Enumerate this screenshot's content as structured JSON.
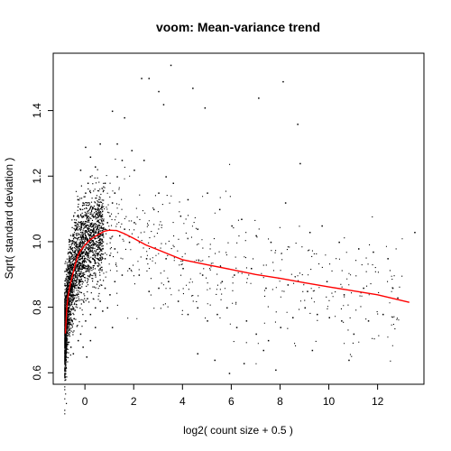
{
  "chart_data": {
    "type": "scatter",
    "title": "voom: Mean-variance trend",
    "xlabel": "log2( count size + 0.5 )",
    "ylabel": "Sqrt( standard deviation )",
    "xlim": [
      -1.3,
      13.9
    ],
    "ylim": [
      0.565,
      1.575
    ],
    "xticks": [
      0,
      2,
      4,
      6,
      8,
      10,
      12
    ],
    "yticks": [
      0.6,
      0.8,
      1.0,
      1.2,
      1.4
    ],
    "xtick_labels": [
      "0",
      "2",
      "4",
      "6",
      "8",
      "10",
      "12"
    ],
    "ytick_labels": [
      "0.6",
      "0.8",
      "1.0",
      "1.2",
      "1.4"
    ],
    "grid": false,
    "point_color": "#000000",
    "trend_color": "#ff0000",
    "trend": {
      "x": [
        -0.8,
        -0.75,
        -0.7,
        -0.6,
        -0.5,
        -0.4,
        -0.3,
        -0.2,
        0.0,
        0.2,
        0.5,
        0.8,
        1.0,
        1.3,
        1.6,
        2.0,
        2.5,
        3.0,
        3.5,
        4.0,
        5.0,
        6.0,
        7.0,
        8.0,
        9.0,
        10.0,
        11.0,
        12.0,
        13.3
      ],
      "y": [
        0.72,
        0.79,
        0.83,
        0.87,
        0.9,
        0.93,
        0.955,
        0.97,
        0.99,
        1.005,
        1.02,
        1.032,
        1.035,
        1.034,
        1.025,
        1.01,
        0.99,
        0.975,
        0.96,
        0.945,
        0.93,
        0.915,
        0.9,
        0.888,
        0.875,
        0.862,
        0.85,
        0.838,
        0.815
      ]
    },
    "points": [
      [
        -0.85,
        0.66
      ],
      [
        -0.8,
        0.7
      ],
      [
        -0.75,
        0.74
      ],
      [
        -0.7,
        0.78
      ],
      [
        -0.65,
        0.82
      ],
      [
        -0.6,
        0.85
      ],
      [
        -0.55,
        0.88
      ],
      [
        -0.5,
        0.9
      ],
      [
        -0.45,
        0.92
      ],
      [
        -0.4,
        0.94
      ],
      [
        -0.35,
        0.96
      ],
      [
        -0.3,
        0.97
      ],
      [
        -0.25,
        0.99
      ],
      [
        -0.2,
        1.0
      ],
      [
        -0.1,
        1.01
      ],
      [
        0.0,
        1.02
      ],
      [
        0.1,
        1.04
      ],
      [
        0.2,
        1.05
      ],
      [
        -0.6,
        0.75
      ],
      [
        -0.5,
        0.8
      ],
      [
        -0.4,
        0.82
      ],
      [
        -0.3,
        0.86
      ],
      [
        -0.2,
        0.88
      ],
      [
        -0.1,
        0.9
      ],
      [
        0.0,
        0.92
      ],
      [
        0.1,
        0.93
      ],
      [
        0.2,
        0.94
      ],
      [
        0.3,
        0.96
      ],
      [
        -0.7,
        0.92
      ],
      [
        -0.6,
        0.98
      ],
      [
        -0.5,
        1.02
      ],
      [
        -0.4,
        1.06
      ],
      [
        -0.3,
        1.08
      ],
      [
        -0.2,
        1.1
      ],
      [
        -0.1,
        1.12
      ],
      [
        0.0,
        1.15
      ],
      [
        0.1,
        1.18
      ],
      [
        0.2,
        1.2
      ],
      [
        0.3,
        1.08
      ],
      [
        0.4,
        1.1
      ],
      [
        0.5,
        1.05
      ],
      [
        0.6,
        1.0
      ],
      [
        0.7,
        0.98
      ],
      [
        0.8,
        1.04
      ],
      [
        0.9,
        1.06
      ],
      [
        1.0,
        1.08
      ],
      [
        1.1,
        1.12
      ],
      [
        1.2,
        1.15
      ],
      [
        1.3,
        1.2
      ],
      [
        1.5,
        1.25
      ],
      [
        0.4,
        0.9
      ],
      [
        0.5,
        0.88
      ],
      [
        0.6,
        0.92
      ],
      [
        0.8,
        0.95
      ],
      [
        1.0,
        0.96
      ],
      [
        1.2,
        0.98
      ],
      [
        1.4,
        1.02
      ],
      [
        1.6,
        1.04
      ],
      [
        1.8,
        1.0
      ],
      [
        2.0,
        1.06
      ],
      [
        -0.6,
        0.68
      ],
      [
        -0.5,
        0.66
      ],
      [
        -0.3,
        0.7
      ],
      [
        -0.2,
        0.72
      ],
      [
        0.0,
        0.76
      ],
      [
        0.2,
        0.78
      ],
      [
        0.4,
        0.8
      ],
      [
        0.6,
        0.82
      ],
      [
        0.8,
        0.86
      ],
      [
        1.0,
        0.84
      ],
      [
        0.0,
        1.29
      ],
      [
        0.2,
        1.26
      ],
      [
        0.4,
        1.23
      ],
      [
        0.6,
        1.3
      ],
      [
        0.8,
        1.18
      ],
      [
        -0.2,
        1.22
      ],
      [
        1.1,
        1.4
      ],
      [
        1.3,
        1.3
      ],
      [
        1.6,
        1.38
      ],
      [
        1.9,
        1.28
      ],
      [
        2.3,
        1.5
      ],
      [
        2.6,
        1.5
      ],
      [
        3.5,
        1.54
      ],
      [
        3.2,
        1.42
      ],
      [
        3.0,
        1.46
      ],
      [
        4.4,
        1.47
      ],
      [
        4.9,
        1.41
      ],
      [
        7.1,
        1.44
      ],
      [
        8.1,
        1.49
      ],
      [
        8.7,
        1.36
      ],
      [
        2.0,
        1.22
      ],
      [
        2.4,
        1.25
      ],
      [
        2.8,
        1.1
      ],
      [
        3.0,
        1.15
      ],
      [
        3.3,
        1.2
      ],
      [
        3.6,
        1.18
      ],
      [
        3.9,
        1.08
      ],
      [
        4.2,
        1.13
      ],
      [
        4.6,
        1.04
      ],
      [
        5.0,
        1.15
      ],
      [
        5.5,
        1.1
      ],
      [
        6.0,
        1.05
      ],
      [
        6.4,
        1.07
      ],
      [
        7.0,
        1.02
      ],
      [
        7.6,
        1.0
      ],
      [
        8.2,
        1.12
      ],
      [
        8.8,
        1.24
      ],
      [
        9.2,
        1.03
      ],
      [
        9.7,
        1.05
      ],
      [
        10.4,
        1.0
      ],
      [
        11.2,
        0.98
      ],
      [
        11.8,
        0.97
      ],
      [
        12.4,
        0.95
      ],
      [
        13.5,
        1.03
      ],
      [
        2.2,
        0.9
      ],
      [
        2.6,
        0.85
      ],
      [
        3.0,
        0.86
      ],
      [
        3.4,
        0.88
      ],
      [
        3.8,
        0.82
      ],
      [
        4.2,
        0.78
      ],
      [
        4.6,
        0.8
      ],
      [
        5.0,
        0.76
      ],
      [
        5.4,
        0.78
      ],
      [
        5.8,
        0.8
      ],
      [
        6.2,
        0.74
      ],
      [
        6.6,
        0.76
      ],
      [
        7.0,
        0.72
      ],
      [
        7.5,
        0.7
      ],
      [
        8.0,
        0.74
      ],
      [
        8.5,
        0.77
      ],
      [
        9.0,
        0.8
      ],
      [
        9.5,
        0.78
      ],
      [
        10.0,
        0.77
      ],
      [
        10.5,
        0.76
      ],
      [
        11.0,
        0.72
      ],
      [
        11.6,
        0.76
      ],
      [
        12.2,
        0.78
      ],
      [
        12.8,
        0.83
      ],
      [
        4.6,
        0.66
      ],
      [
        5.3,
        0.64
      ],
      [
        5.9,
        0.6
      ],
      [
        6.5,
        0.63
      ],
      [
        7.3,
        0.67
      ],
      [
        7.8,
        0.61
      ],
      [
        9.3,
        0.67
      ],
      [
        10.8,
        0.64
      ],
      [
        2.5,
        0.95
      ],
      [
        3.3,
        0.95
      ],
      [
        4.0,
        0.92
      ],
      [
        4.8,
        0.9
      ],
      [
        5.6,
        0.88
      ],
      [
        6.1,
        0.9
      ],
      [
        6.8,
        0.92
      ],
      [
        7.4,
        0.86
      ],
      [
        8.3,
        0.87
      ],
      [
        9.1,
        0.85
      ],
      [
        9.9,
        0.88
      ],
      [
        10.6,
        0.84
      ],
      [
        11.4,
        0.86
      ],
      [
        12.6,
        0.86
      ],
      [
        1.8,
        0.92
      ],
      [
        1.5,
        0.9
      ],
      [
        1.2,
        0.88
      ],
      [
        0.9,
        0.8
      ],
      [
        0.7,
        0.79
      ],
      [
        0.4,
        0.74
      ],
      [
        0.2,
        0.7
      ],
      [
        -0.1,
        0.68
      ],
      [
        0.05,
        0.65
      ],
      [
        1.1,
        0.74
      ]
    ]
  }
}
